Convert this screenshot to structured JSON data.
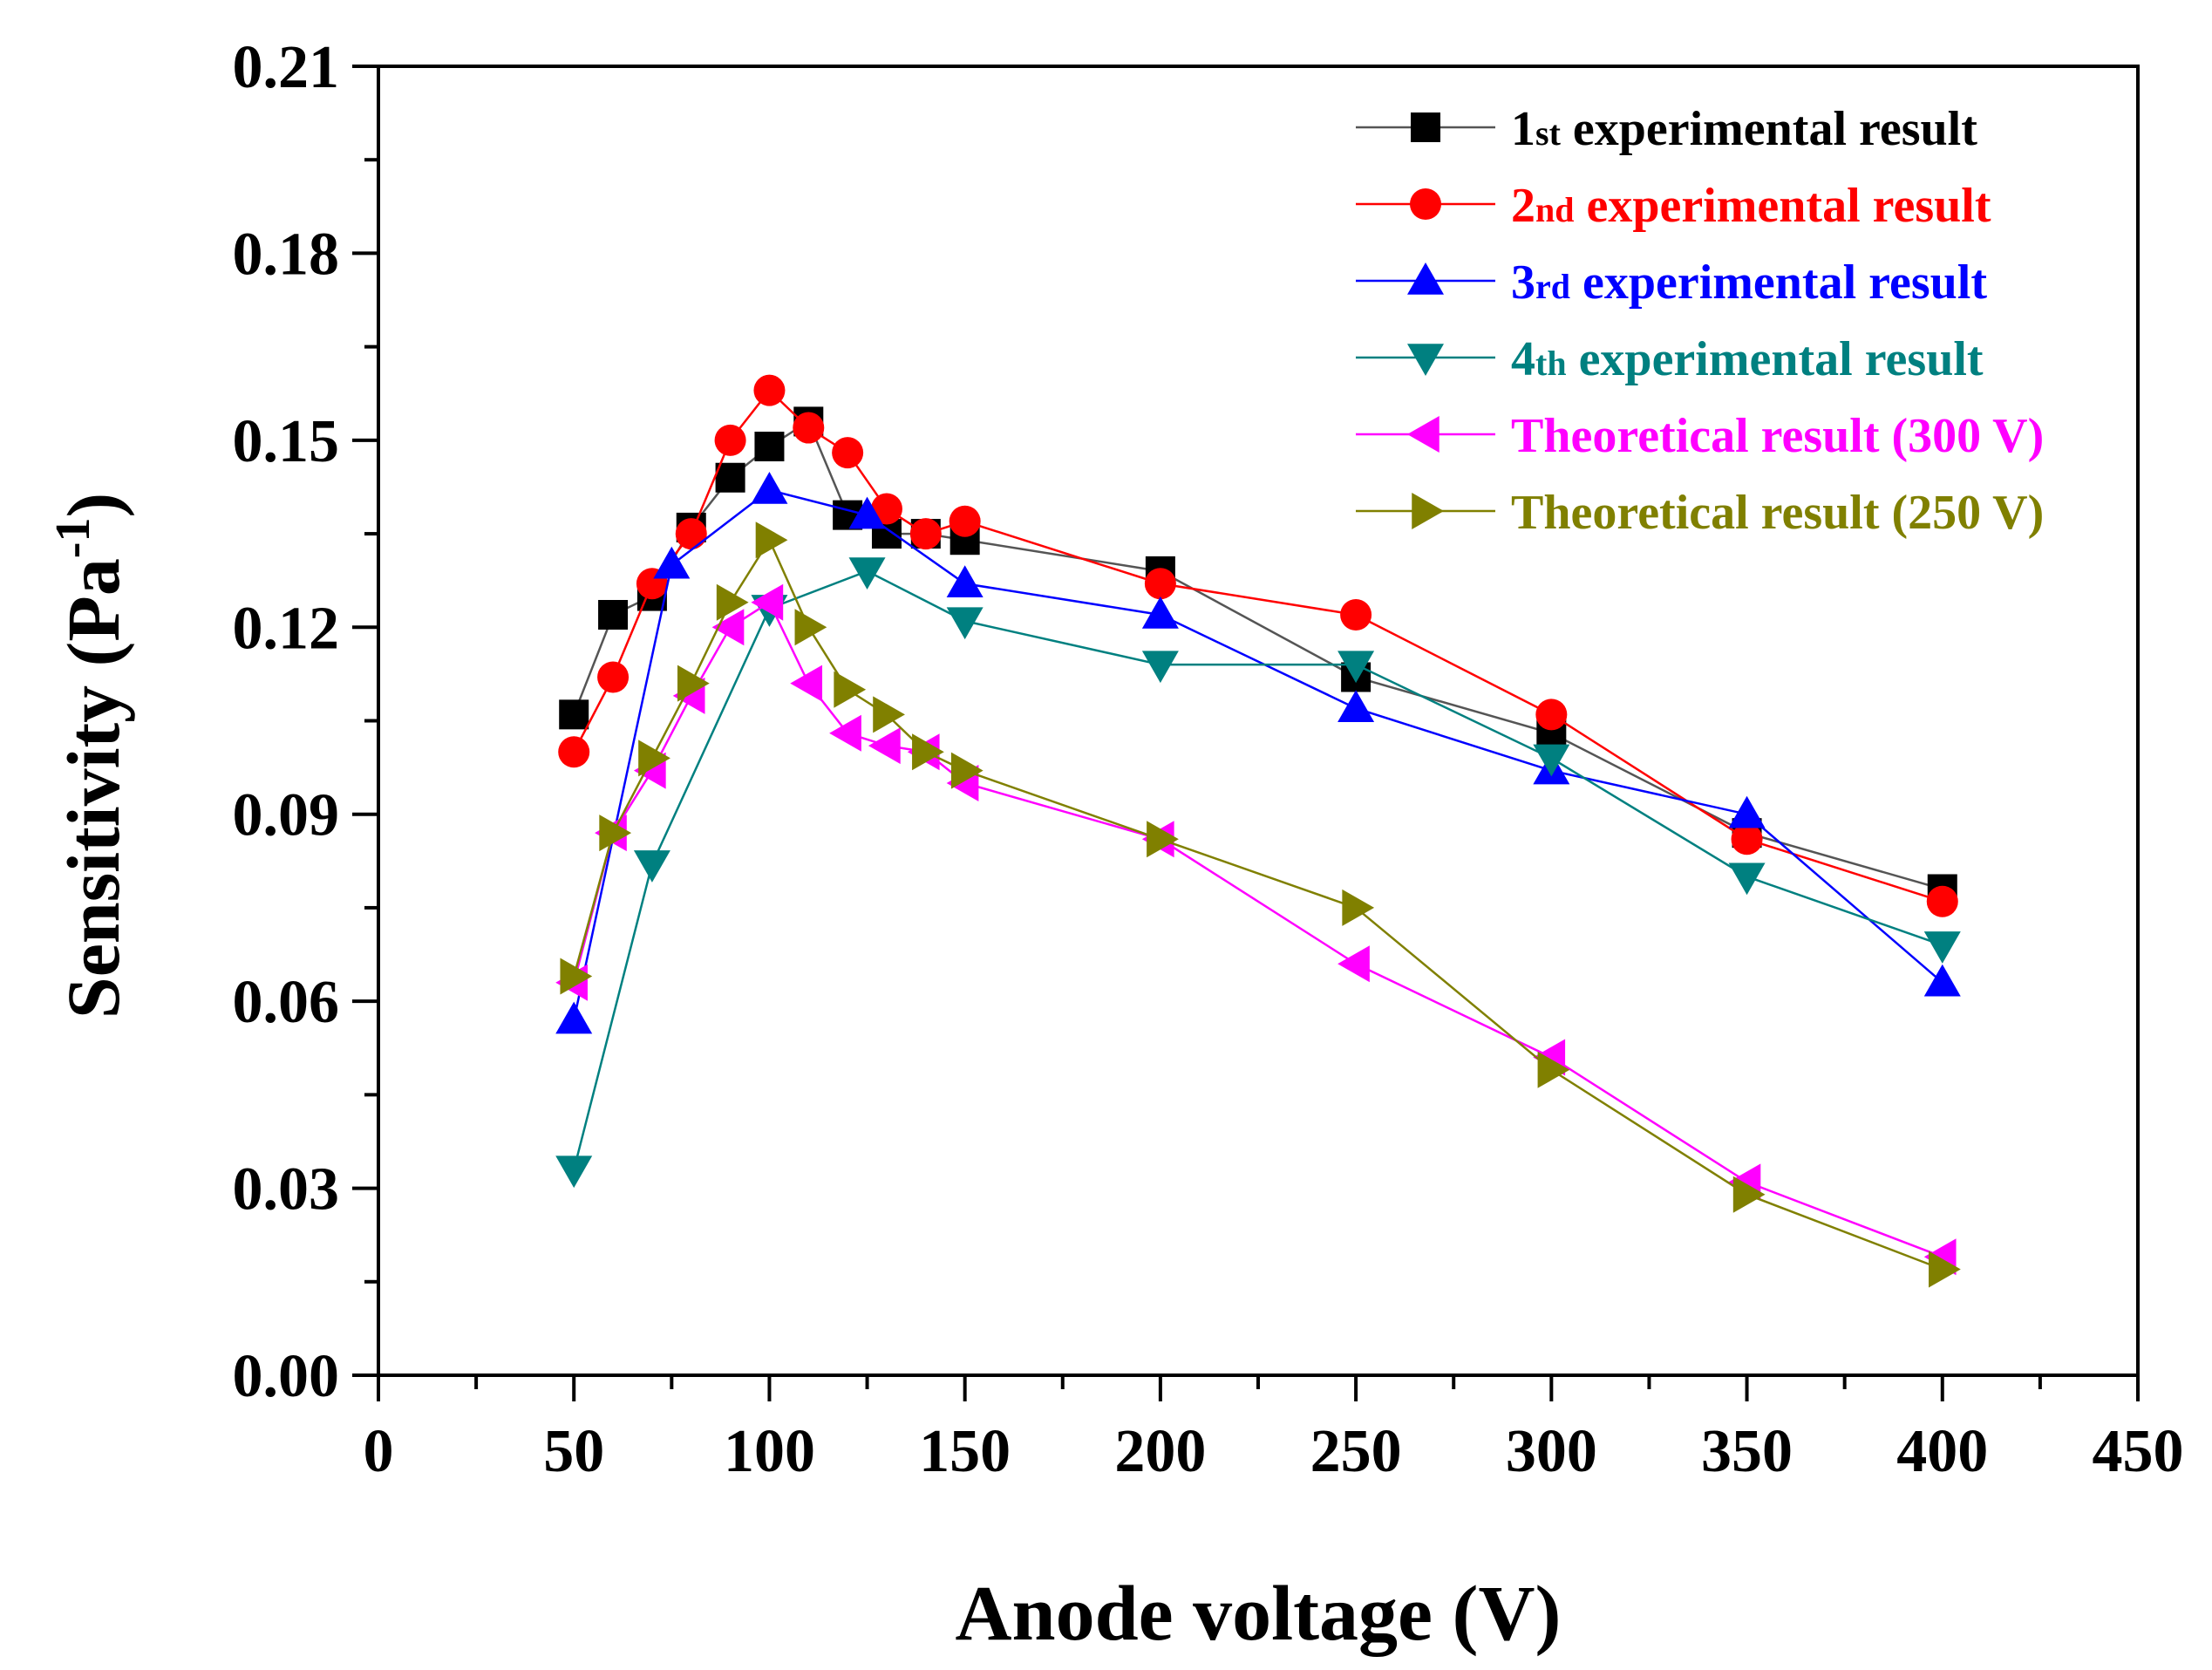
{
  "chart_data": {
    "type": "line",
    "title": "",
    "xlabel": "Anode voltage (V)",
    "ylabel_main": "Sensitivity (Pa",
    "ylabel_sup": "-1",
    "ylabel_close": ")",
    "xlim": [
      0,
      450
    ],
    "ylim": [
      0,
      0.21
    ],
    "xticks": [
      0,
      50,
      100,
      150,
      200,
      250,
      300,
      350,
      400,
      450
    ],
    "xtick_labels": [
      "0",
      "50",
      "100",
      "150",
      "200",
      "250",
      "300",
      "350",
      "400",
      "450"
    ],
    "yticks": [
      0,
      0.03,
      0.06,
      0.09,
      0.12,
      0.15,
      0.18,
      0.21
    ],
    "ytick_labels": [
      "0.00",
      "0.03",
      "0.06",
      "0.09",
      "0.12",
      "0.15",
      "0.18",
      "0.21"
    ],
    "legend_position": "top-right",
    "series": [
      {
        "name": "1st experimental result",
        "legend_prefix": "1",
        "legend_sup": "st",
        "legend_rest": " experimental result",
        "marker": "square",
        "line_color": "#555555",
        "marker_color": "#000000",
        "text_color": "#000000",
        "x": [
          50,
          60,
          70,
          80,
          90,
          100,
          110,
          120,
          130,
          140,
          150,
          200,
          250,
          300,
          350,
          400
        ],
        "y": [
          0.106,
          0.122,
          0.125,
          0.136,
          0.144,
          0.149,
          0.153,
          0.138,
          0.135,
          0.135,
          0.134,
          0.129,
          0.112,
          0.103,
          0.087,
          0.078
        ]
      },
      {
        "name": "2nd experimental result",
        "legend_prefix": "2",
        "legend_sup": "nd",
        "legend_rest": " experimental result",
        "marker": "circle",
        "line_color": "#ff0000",
        "marker_color": "#ff0000",
        "text_color": "#ff0000",
        "x": [
          50,
          60,
          70,
          80,
          90,
          100,
          110,
          120,
          130,
          140,
          150,
          200,
          250,
          300,
          350,
          400
        ],
        "y": [
          0.1,
          0.112,
          0.127,
          0.135,
          0.15,
          0.158,
          0.152,
          0.148,
          0.139,
          0.135,
          0.137,
          0.127,
          0.122,
          0.106,
          0.086,
          0.076
        ]
      },
      {
        "name": "3rd experimental result",
        "legend_prefix": "3",
        "legend_sup": "rd",
        "legend_rest": " experimental result",
        "marker": "triangle-up",
        "line_color": "#0000ff",
        "marker_color": "#0000ff",
        "text_color": "#0000ff",
        "x": [
          50,
          75,
          100,
          125,
          150,
          200,
          250,
          300,
          350,
          400
        ],
        "y": [
          0.057,
          0.13,
          0.142,
          0.138,
          0.127,
          0.122,
          0.107,
          0.097,
          0.09,
          0.063
        ]
      },
      {
        "name": "4th experimental result",
        "legend_prefix": "4",
        "legend_sup": "th",
        "legend_rest": " experimental result",
        "marker": "triangle-down",
        "line_color": "#008080",
        "marker_color": "#008080",
        "text_color": "#008080",
        "x": [
          50,
          70,
          100,
          125,
          150,
          200,
          250,
          300,
          350,
          400
        ],
        "y": [
          0.033,
          0.082,
          0.123,
          0.129,
          0.121,
          0.114,
          0.114,
          0.099,
          0.08,
          0.069
        ]
      },
      {
        "name": "Theoretical result (300 V)",
        "legend_prefix": "Theoretical result (300 V)",
        "legend_sup": "",
        "legend_rest": "",
        "marker": "triangle-left",
        "line_color": "#ff00ff",
        "marker_color": "#ff00ff",
        "text_color": "#ff00ff",
        "x": [
          50,
          60,
          70,
          80,
          90,
          100,
          110,
          120,
          130,
          140,
          150,
          200,
          250,
          300,
          350,
          400
        ],
        "y": [
          0.063,
          0.087,
          0.097,
          0.109,
          0.12,
          0.124,
          0.111,
          0.103,
          0.101,
          0.1,
          0.095,
          0.086,
          0.066,
          0.051,
          0.031,
          0.019
        ]
      },
      {
        "name": "Theoretical result (250 V)",
        "legend_prefix": "Theoretical result (250 V)",
        "legend_sup": "",
        "legend_rest": "",
        "marker": "triangle-right",
        "line_color": "#808000",
        "marker_color": "#808000",
        "text_color": "#808000",
        "x": [
          50,
          60,
          70,
          80,
          90,
          100,
          110,
          120,
          130,
          140,
          150,
          200,
          250,
          300,
          350,
          400
        ],
        "y": [
          0.064,
          0.087,
          0.099,
          0.111,
          0.124,
          0.134,
          0.12,
          0.11,
          0.106,
          0.1,
          0.097,
          0.086,
          0.075,
          0.049,
          0.029,
          0.017
        ]
      }
    ]
  }
}
